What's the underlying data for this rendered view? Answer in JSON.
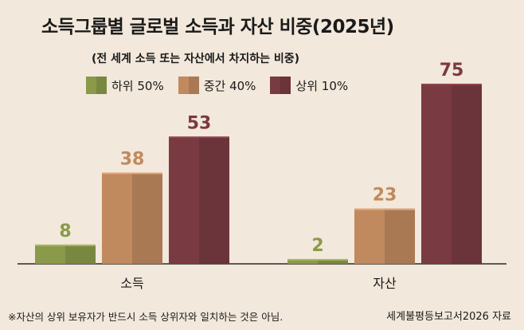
{
  "chart_data": {
    "type": "bar",
    "title": "소득그룹별 글로벌 소득과 자산 비중(2025년)",
    "subtitle": "(전 세계 소득 또는 자산에서 차지하는 비중)",
    "categories": [
      "소득",
      "자산"
    ],
    "series": [
      {
        "name": "하위 50%",
        "values": [
          8,
          2
        ],
        "color": "#8a9a4a"
      },
      {
        "name": "중간 40%",
        "values": [
          38,
          23
        ],
        "color": "#c08a5e"
      },
      {
        "name": "상위 10%",
        "values": [
          53,
          75
        ],
        "color": "#7a3a42"
      }
    ],
    "ylim": [
      0,
      80
    ],
    "grid": false,
    "legend_position": "top"
  },
  "footnote": "※자산의 상위 보유자가 반드시 소득 상위자와 일치하는 것은 아님.",
  "source": "세계불평등보고서2026 자료",
  "colors": {
    "background": "#f2e8db",
    "axis": "#2a2a2a"
  }
}
